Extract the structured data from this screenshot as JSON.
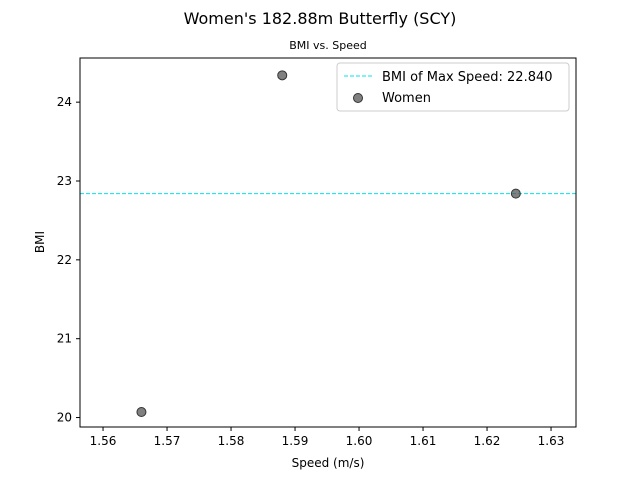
{
  "chart_data": {
    "type": "scatter",
    "title": "Women's 182.88m Butterfly (SCY)",
    "subtitle": "BMI vs. Speed",
    "xlabel": "Speed (m/s)",
    "ylabel": "BMI",
    "xlim": [
      1.5564,
      1.6339
    ],
    "ylim": [
      19.88,
      24.56
    ],
    "xticks": [
      "1.56",
      "1.57",
      "1.58",
      "1.59",
      "1.60",
      "1.61",
      "1.62",
      "1.63"
    ],
    "yticks": [
      "20",
      "21",
      "22",
      "23",
      "24"
    ],
    "grid": false,
    "legend_position": "top-right",
    "series": [
      {
        "name": "Women",
        "color": "#555555",
        "points": [
          {
            "x": 1.566,
            "y": 20.07
          },
          {
            "x": 1.588,
            "y": 24.34
          },
          {
            "x": 1.6245,
            "y": 22.84
          }
        ]
      }
    ],
    "reference_line": {
      "orientation": "horizontal",
      "y": 22.84,
      "label": "BMI of Max Speed: 22.840",
      "color": "#00e5ee",
      "style": "dashed"
    }
  }
}
